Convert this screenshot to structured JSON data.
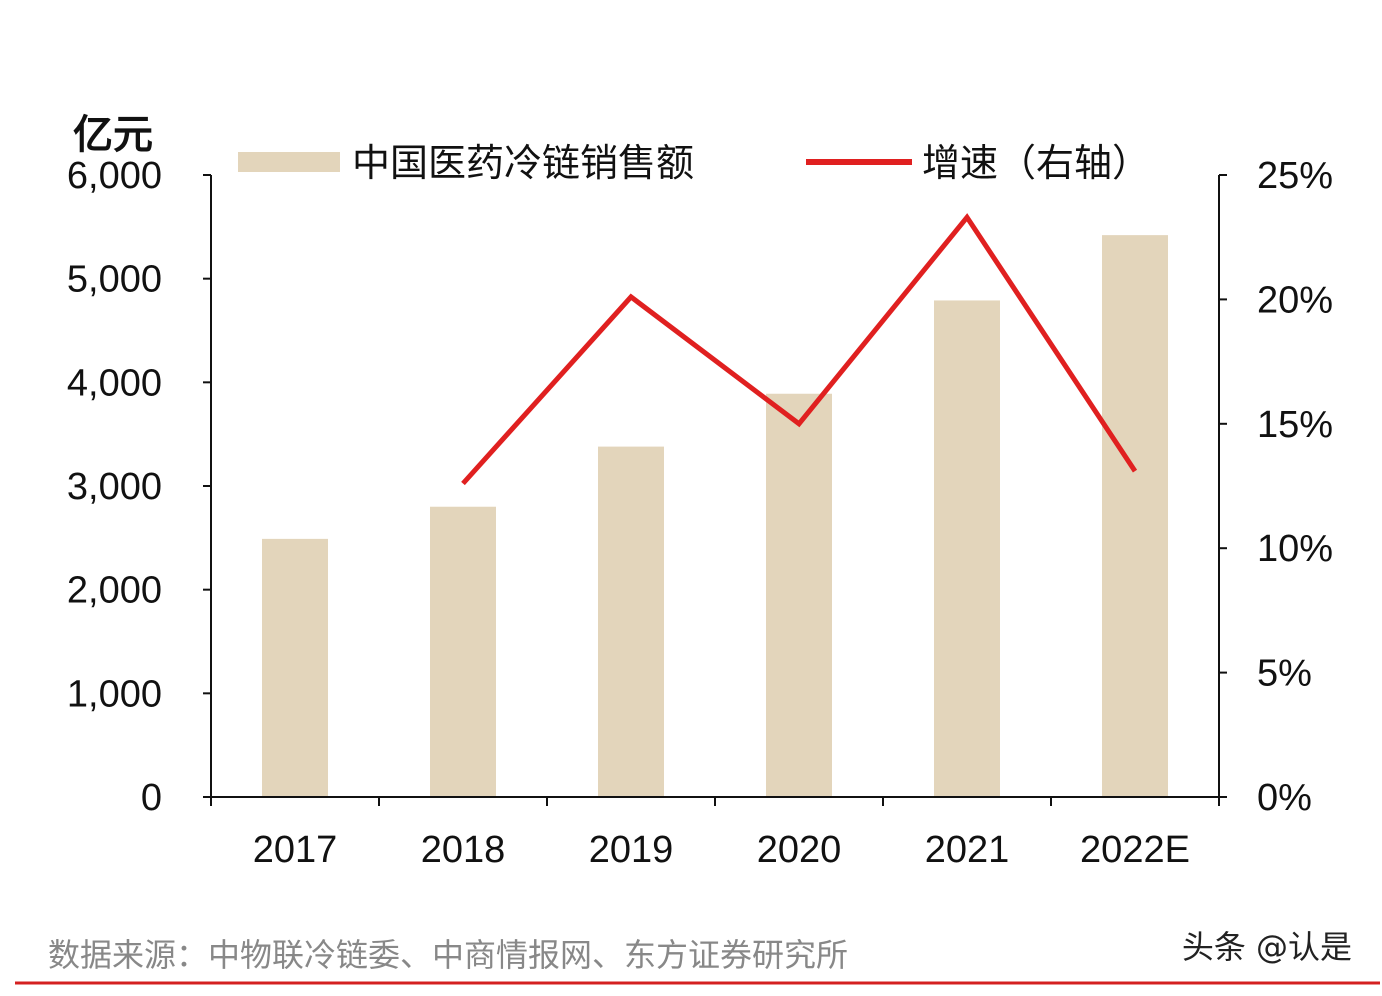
{
  "chart_data": {
    "type": "bar+line",
    "categories": [
      "2017",
      "2018",
      "2019",
      "2020",
      "2021",
      "2022E"
    ],
    "y_left": {
      "unit_label": "亿元",
      "range": [
        0,
        6000
      ],
      "ticks": [
        "0",
        "1,000",
        "2,000",
        "3,000",
        "4,000",
        "5,000",
        "6,000"
      ]
    },
    "y_right": {
      "range": [
        0,
        25
      ],
      "ticks": [
        "0%",
        "5%",
        "10%",
        "15%",
        "20%",
        "25%"
      ]
    },
    "series": [
      {
        "name": "中国医药冷链销售额",
        "type": "bar",
        "axis": "left",
        "color": "#e3d5bb",
        "values": [
          2490,
          2800,
          3380,
          3890,
          4790,
          5420
        ]
      },
      {
        "name": "增速（右轴）",
        "type": "line",
        "axis": "right",
        "color": "#e02020",
        "values": [
          null,
          12.6,
          20.1,
          15.0,
          23.3,
          13.1
        ]
      }
    ],
    "legend": "top",
    "grid": false,
    "source": "数据来源：中物联冷链委、中商情报网、东方证券研究所",
    "watermark": "头条 @认是"
  }
}
